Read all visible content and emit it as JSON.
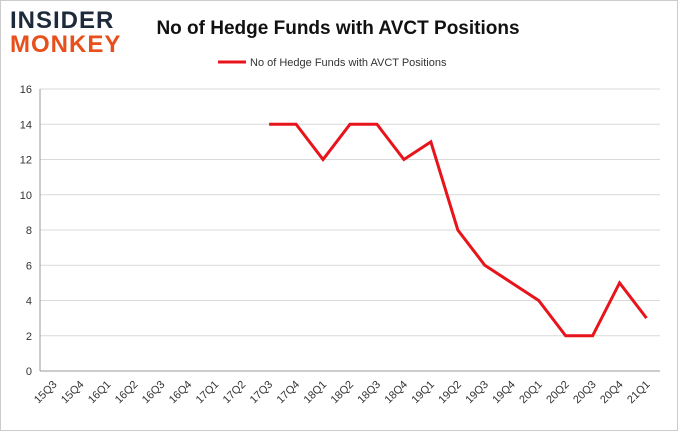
{
  "logo": {
    "line1": "INSIDER",
    "line2": "MONKEY"
  },
  "chart_data": {
    "type": "line",
    "title": "No of Hedge Funds with AVCT Positions",
    "categories": [
      "15Q3",
      "15Q4",
      "16Q1",
      "16Q2",
      "16Q3",
      "16Q4",
      "17Q1",
      "17Q2",
      "17Q3",
      "17Q4",
      "18Q1",
      "18Q2",
      "18Q3",
      "18Q4",
      "19Q1",
      "19Q2",
      "19Q3",
      "19Q4",
      "20Q1",
      "20Q2",
      "20Q3",
      "20Q4",
      "21Q1"
    ],
    "series": [
      {
        "name": "No of Hedge Funds with AVCT Positions",
        "color": "#e8141b",
        "values": [
          null,
          null,
          null,
          null,
          null,
          null,
          null,
          null,
          14,
          14,
          12,
          14,
          14,
          12,
          13,
          8,
          6,
          5,
          4,
          2,
          2,
          5,
          3
        ]
      }
    ],
    "ylim": [
      0,
      16
    ],
    "yticks": [
      0,
      2,
      4,
      6,
      8,
      10,
      12,
      14,
      16
    ],
    "grid": true,
    "legend": "top"
  }
}
